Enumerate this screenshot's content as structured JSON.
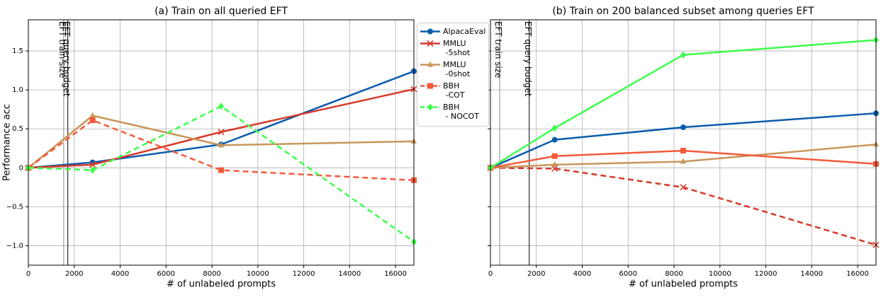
{
  "chart_data": [
    {
      "type": "line",
      "title": "(a) Train on all queried EFT",
      "x_label": "# of unlabeled prompts",
      "y_label": "Performance acc",
      "x": [
        0,
        2800,
        8400,
        16800
      ],
      "xlim": [
        0,
        16800
      ],
      "xticks": [
        0,
        2000,
        4000,
        6000,
        8000,
        10000,
        12000,
        14000,
        16000
      ],
      "ylim": [
        -1.25,
        1.9
      ],
      "yticks": [
        {
          "value": -1,
          "label": "−1.0"
        },
        {
          "value": -0.5,
          "label": "−0.5"
        },
        0,
        0.5,
        {
          "value": 1,
          "label": "1.0"
        },
        1.5
      ],
      "grid": true,
      "annotations": [
        {
          "text": "EFT train size",
          "x": 1540,
          "color": "#888888"
        },
        {
          "text": "EFT query budget",
          "x": 1720,
          "color": "#000000"
        }
      ],
      "series": [
        {
          "name": "AlpacaEval",
          "color": "#0b5cad",
          "marker": "circle",
          "dashed": false,
          "values": [
            0,
            0.07,
            0.3,
            1.24
          ]
        },
        {
          "name": "MMLU\n -5shot",
          "color": "#d63a2a",
          "marker": "x",
          "dashed": false,
          "values": [
            0,
            0.04,
            0.46,
            1.01
          ]
        },
        {
          "name": "MMLU\n -0shot",
          "color": "#c8965a",
          "marker": "triangle",
          "dashed": false,
          "values": [
            0,
            0.67,
            0.29,
            0.34
          ]
        },
        {
          "name": "BBH\n -COT",
          "color": "#f45a3a",
          "marker": "square",
          "dashed": true,
          "values": [
            0,
            0.61,
            -0.03,
            -0.16
          ]
        },
        {
          "name": "BBH\n - NOCOT",
          "color": "#3cff4a",
          "marker": "diamond",
          "dashed": true,
          "values": [
            0,
            -0.03,
            0.79,
            -0.95
          ]
        }
      ]
    },
    {
      "type": "line",
      "title": "(b) Train on 200 balanced subset among queries EFT",
      "x_label": "# of unlabeled prompts",
      "x": [
        0,
        2800,
        8400,
        16800
      ],
      "xlim": [
        0,
        16800
      ],
      "xticks": [
        0,
        2000,
        4000,
        6000,
        8000,
        10000,
        12000,
        14000,
        16000
      ],
      "ylim": [
        -1.25,
        1.9
      ],
      "yticks": [
        -1,
        -0.5,
        0,
        0.5,
        1,
        1.5
      ],
      "grid": true,
      "annotations": [
        {
          "text": "EFT train size",
          "x": 400,
          "color": "#888888"
        },
        {
          "text": "EFT query budget",
          "x": 1690,
          "color": "#000000"
        }
      ],
      "series": [
        {
          "color": "#0b5cad",
          "marker": "circle",
          "dashed": false,
          "values": [
            0,
            0.36,
            0.52,
            0.7
          ]
        },
        {
          "color": "#d63a2a",
          "marker": "x",
          "dashed": true,
          "values": [
            0,
            -0.01,
            -0.25,
            -0.99
          ]
        },
        {
          "color": "#c8965a",
          "marker": "triangle",
          "dashed": false,
          "values": [
            0,
            0.04,
            0.08,
            0.3
          ]
        },
        {
          "color": "#f45a3a",
          "marker": "square",
          "dashed": false,
          "values": [
            0,
            0.15,
            0.22,
            0.05
          ]
        },
        {
          "color": "#3cff4a",
          "marker": "diamond",
          "dashed": false,
          "values": [
            0,
            0.51,
            1.45,
            1.64
          ]
        }
      ]
    }
  ]
}
